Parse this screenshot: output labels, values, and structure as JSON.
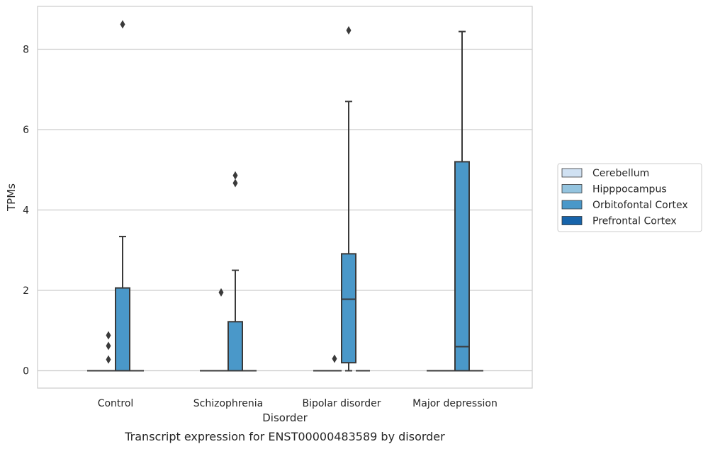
{
  "caption": "Transcript expression for ENST00000483589 by disorder",
  "chart_data": {
    "type": "box",
    "xlabel": "Disorder",
    "ylabel": "TPMs",
    "categories": [
      "Control",
      "Schizophrenia",
      "Bipolar disorder",
      "Major depression"
    ],
    "ylim": [
      -0.4,
      9.05
    ],
    "yticks": [
      0,
      2,
      4,
      6,
      8
    ],
    "grid": "horizontal",
    "legend_position": "right",
    "series": [
      {
        "name": "Cerebellum",
        "color": "#d0e1f2",
        "boxes": [
          {
            "category": "Control",
            "whislo": 0,
            "q1": 0,
            "median": 0,
            "q3": 0,
            "whishi": 0,
            "fliers": []
          },
          {
            "category": "Schizophrenia",
            "whislo": 0,
            "q1": 0,
            "median": 0,
            "q3": 0,
            "whishi": 0,
            "fliers": []
          },
          {
            "category": "Bipolar disorder",
            "whislo": 0,
            "q1": 0,
            "median": 0,
            "q3": 0,
            "whishi": 0,
            "fliers": []
          },
          {
            "category": "Major depression",
            "whislo": 0,
            "q1": 0,
            "median": 0,
            "q3": 0,
            "whishi": 0,
            "fliers": []
          }
        ]
      },
      {
        "name": "Hipppocampus",
        "color": "#94c4df",
        "boxes": [
          {
            "category": "Control",
            "whislo": 0,
            "q1": 0,
            "median": 0,
            "q3": 0,
            "whishi": 0,
            "fliers": [
              0.28,
              0.62,
              0.88
            ]
          },
          {
            "category": "Schizophrenia",
            "whislo": 0,
            "q1": 0,
            "median": 0,
            "q3": 0,
            "whishi": 0,
            "fliers": [
              1.95
            ]
          },
          {
            "category": "Bipolar disorder",
            "whislo": 0,
            "q1": 0,
            "median": 0,
            "q3": 0,
            "whishi": 0,
            "fliers": [
              0.3
            ]
          },
          {
            "category": "Major depression",
            "whislo": 0,
            "q1": 0,
            "median": 0,
            "q3": 0,
            "whishi": 0,
            "fliers": []
          }
        ]
      },
      {
        "name": "Orbitofontal Cortex",
        "color": "#4a98c9",
        "boxes": [
          {
            "category": "Control",
            "whislo": 0,
            "q1": 0,
            "median": 0,
            "q3": 2.06,
            "whishi": 3.34,
            "fliers": [
              8.62
            ]
          },
          {
            "category": "Schizophrenia",
            "whislo": 0,
            "q1": 0,
            "median": 0,
            "q3": 1.22,
            "whishi": 2.5,
            "fliers": [
              4.67,
              4.86
            ]
          },
          {
            "category": "Bipolar disorder",
            "whislo": 0,
            "q1": 0.2,
            "median": 1.78,
            "q3": 2.91,
            "whishi": 6.7,
            "fliers": [
              8.47
            ]
          },
          {
            "category": "Major depression",
            "whislo": 0,
            "q1": 0,
            "median": 0.6,
            "q3": 5.2,
            "whishi": 8.44,
            "fliers": []
          }
        ]
      },
      {
        "name": "Prefrontal Cortex",
        "color": "#1764ab",
        "boxes": [
          {
            "category": "Control",
            "whislo": 0,
            "q1": 0,
            "median": 0,
            "q3": 0,
            "whishi": 0,
            "fliers": []
          },
          {
            "category": "Schizophrenia",
            "whislo": 0,
            "q1": 0,
            "median": 0,
            "q3": 0,
            "whishi": 0,
            "fliers": []
          },
          {
            "category": "Bipolar disorder",
            "whislo": 0,
            "q1": 0,
            "median": 0,
            "q3": 0,
            "whishi": 0,
            "fliers": []
          },
          {
            "category": "Major depression",
            "whislo": 0,
            "q1": 0,
            "median": 0,
            "q3": 0,
            "whishi": 0,
            "fliers": []
          }
        ]
      }
    ]
  }
}
